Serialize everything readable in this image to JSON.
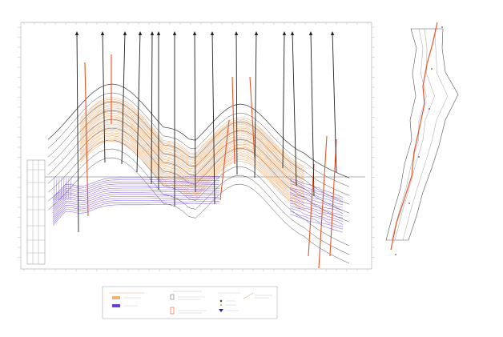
{
  "figure": {
    "section_title": "",
    "map_title": ""
  },
  "colors": {
    "background": "#ffffff",
    "frame": "#9a9a9a",
    "horizon_dark": "#3a3a3a",
    "productive_orange": "#f1b27a",
    "water_blue": "#6a3fd6",
    "fault_red": "#e8542a",
    "well_black": "#222222",
    "map_outline": "#555555"
  },
  "legend": {
    "groups": [
      {
        "title": "",
        "items": [
          "",
          ""
        ]
      },
      {
        "title": "",
        "items": [
          "",
          ""
        ]
      },
      {
        "title": "",
        "items": [
          "",
          "",
          ""
        ]
      },
      {
        "title": "",
        "items": [
          ""
        ]
      }
    ]
  },
  "icons": [
    "well-arrow-icon",
    "fault-line-icon",
    "legend-swatch-icon"
  ]
}
